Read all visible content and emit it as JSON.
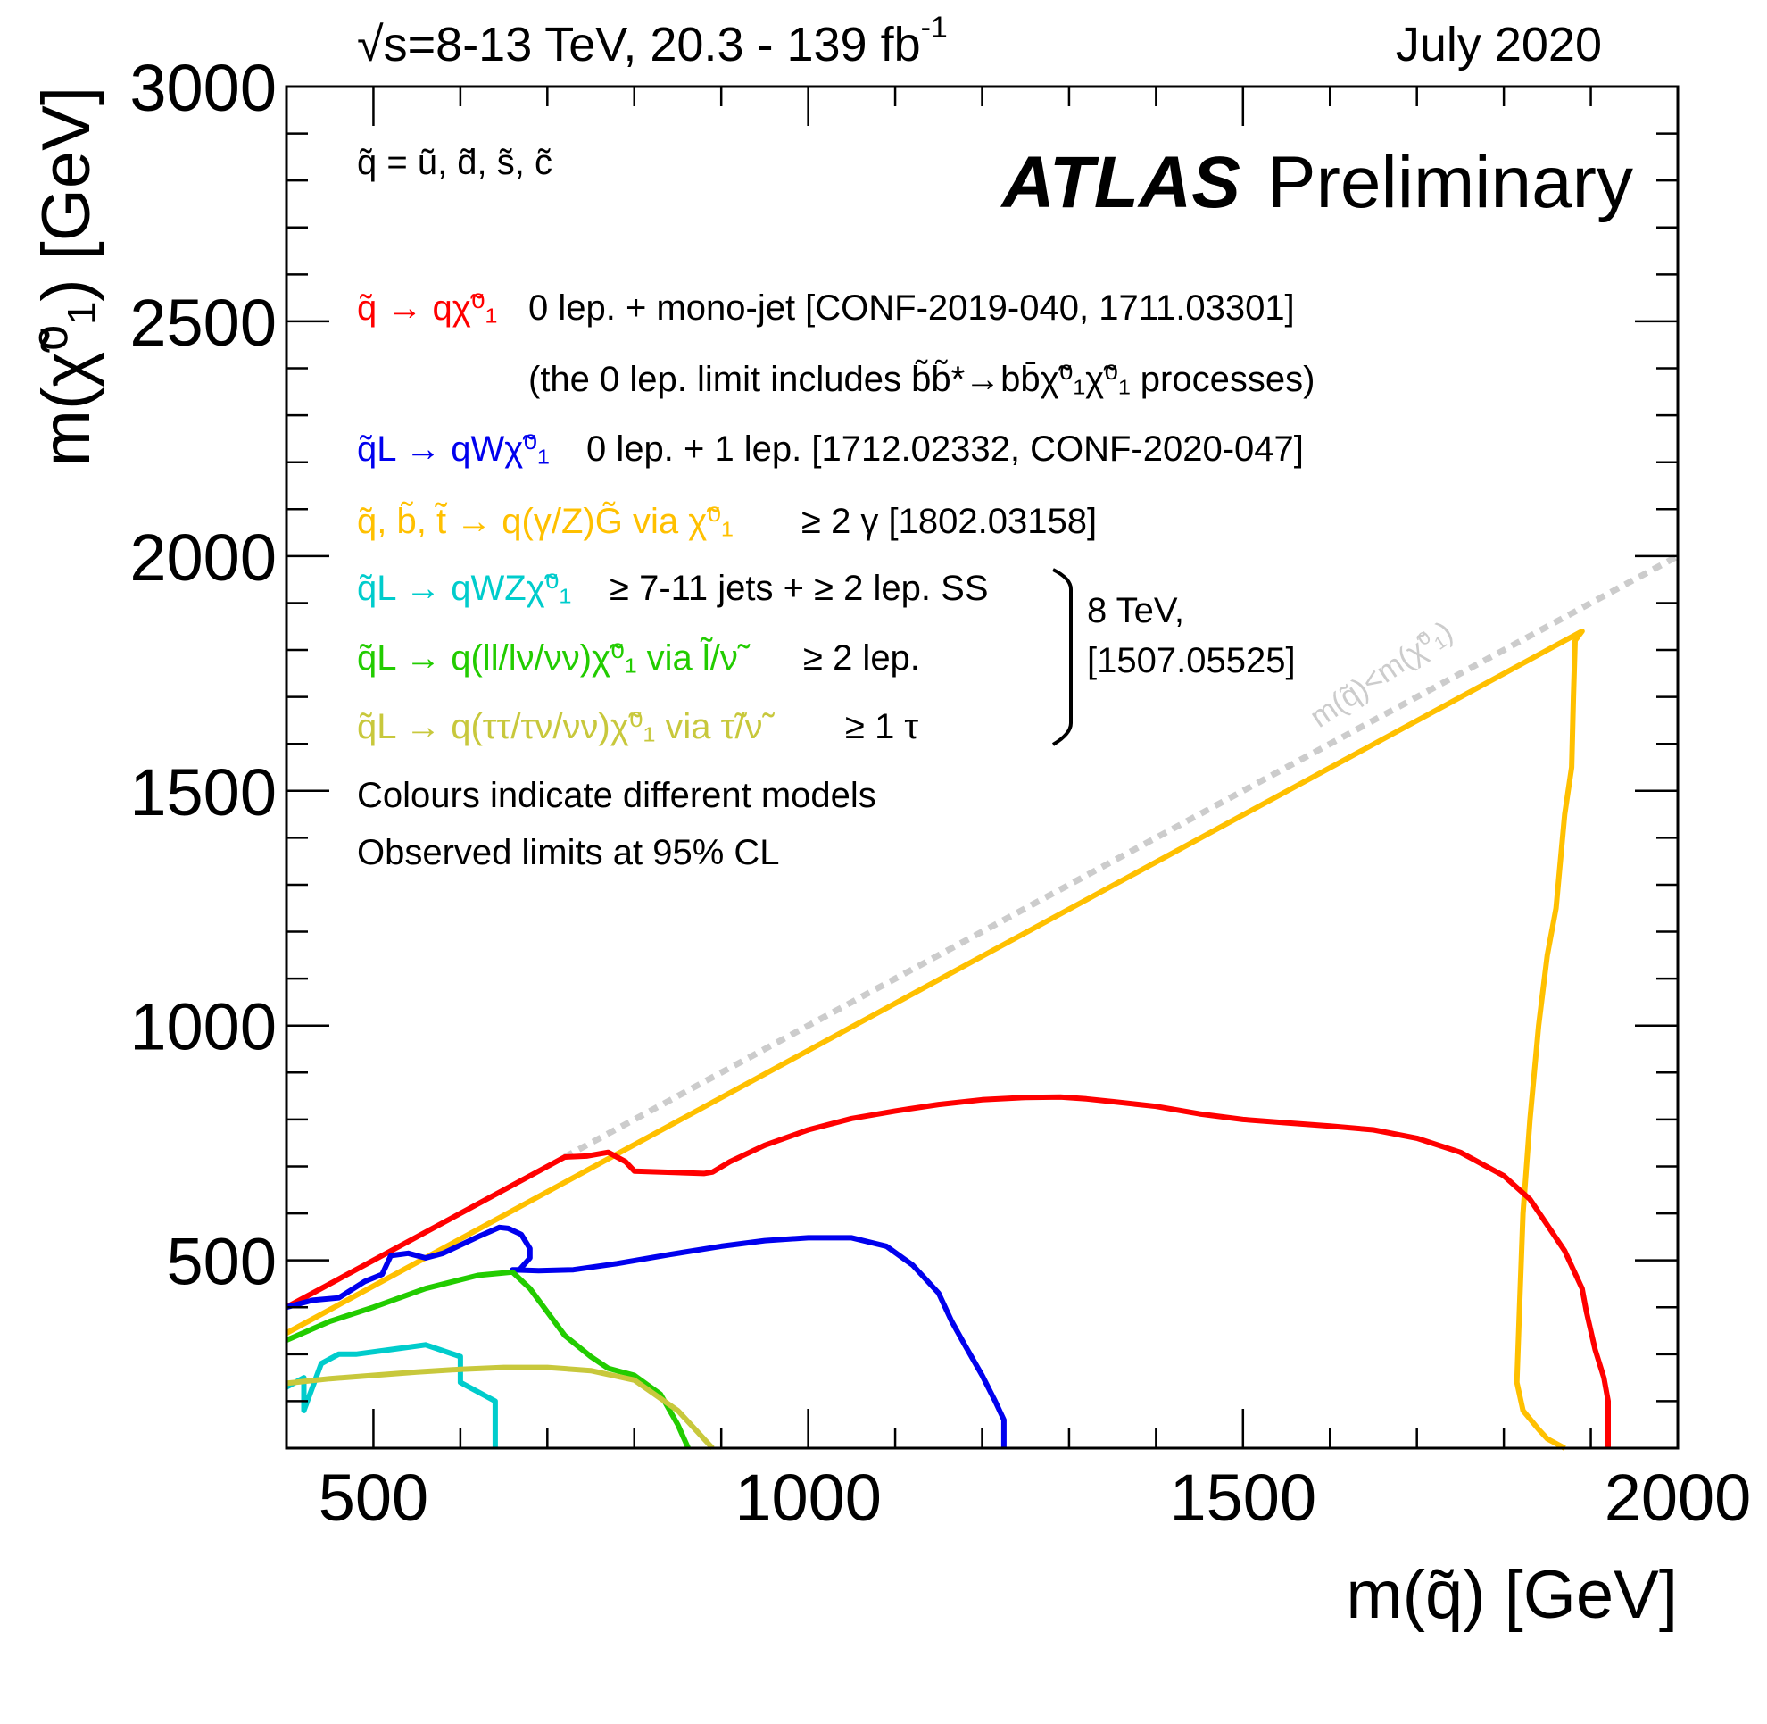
{
  "chart_data": {
    "type": "line",
    "header_left": "√s=8-13 TeV, 20.3 - 139 fb",
    "header_left_sup": "-1",
    "header_right": "July 2020",
    "brand_bold": "ATLAS",
    "brand_rest": "Preliminary",
    "xlabel": "m(q̃) [GeV]",
    "ylabel": "m(χ̃⁰₁) [GeV]",
    "xlim": [
      400,
      2000
    ],
    "ylim": [
      100,
      3000
    ],
    "x_ticks": [
      500,
      1000,
      1500,
      2000
    ],
    "y_ticks": [
      500,
      1000,
      1500,
      2000,
      2500,
      3000
    ],
    "x_tick_labels": [
      "500",
      "1000",
      "1500",
      "2000"
    ],
    "y_tick_labels": [
      "500",
      "1000",
      "1500",
      "2000",
      "2500",
      "3000"
    ],
    "texts": {
      "flavours": "q̃ = ũ, d̃, s̃, c̃",
      "red_process": "q̃ → qχ̃⁰₁",
      "red_desc": "0 lep. + mono-jet [CONF-2019-040, 1711.03301]",
      "red_note": "(the 0 lep. limit includes b̃b̃*→bb̄χ̃⁰₁χ̃⁰₁ processes)",
      "blue_process": "q̃L → qWχ̃⁰₁",
      "blue_desc": "0 lep. + 1 lep. [1712.02332, CONF-2020-047]",
      "orange_process": "q̃, b̃, t̃ → q(γ/Z)G̃ via χ̃⁰₁",
      "orange_desc": "≥ 2 γ [1802.03158]",
      "cyan_process": "q̃L → qWZχ̃⁰₁",
      "cyan_desc": "≥ 7-11 jets + ≥ 2 lep. SS",
      "green_process": "q̃L → q(ll/lν/νν)χ̃⁰₁ via l̃/ν̃",
      "green_desc": "≥ 2 lep.",
      "olive_process": "q̃L → q(ττ/τν/νν)χ̃⁰₁ via τ̃/ν̃",
      "olive_desc": "≥ 1 τ",
      "bracket_line1": "8 TeV,",
      "bracket_line2": "[1507.05525]",
      "colours_note": "Colours indicate different models",
      "cl_note": "Observed limits at 95% CL",
      "diagonal_label": "m(q̃)<m(χ̃⁰₁)"
    },
    "colors": {
      "red": "#ff0000",
      "blue": "#0000ee",
      "orange": "#ffc000",
      "cyan": "#00cccc",
      "green": "#22cc00",
      "olive": "#c8c83c",
      "diagonal": "#cccccc"
    },
    "series": [
      {
        "name": "diagonal",
        "color": "#cccccc",
        "dashed": true,
        "x": [
          720,
          2000
        ],
        "y": [
          720,
          2000
        ]
      },
      {
        "name": "orange",
        "color": "#ffc000",
        "x": [
          400,
          1890,
          1882,
          1880,
          1878,
          1870,
          1860,
          1850,
          1840,
          1830,
          1822,
          1818,
          1815,
          1822,
          1840,
          1850,
          1870
        ],
        "y": [
          345,
          1840,
          1820,
          1700,
          1550,
          1450,
          1250,
          1150,
          1000,
          800,
          600,
          400,
          240,
          180,
          140,
          120,
          100
        ]
      },
      {
        "name": "red",
        "color": "#ff0000",
        "x": [
          400,
          720,
          745,
          770,
          790,
          800,
          880,
          890,
          910,
          950,
          1000,
          1050,
          1100,
          1150,
          1200,
          1250,
          1290,
          1320,
          1350,
          1400,
          1450,
          1500,
          1550,
          1600,
          1650,
          1700,
          1750,
          1800,
          1830,
          1870,
          1890,
          1895,
          1905,
          1915,
          1920,
          1920
        ],
        "y": [
          400,
          720,
          722,
          730,
          710,
          690,
          685,
          688,
          710,
          745,
          778,
          802,
          818,
          832,
          842,
          847,
          848,
          844,
          838,
          828,
          812,
          800,
          793,
          786,
          778,
          760,
          730,
          680,
          630,
          520,
          440,
          390,
          310,
          250,
          200,
          100
        ]
      },
      {
        "name": "blue",
        "color": "#0000ee",
        "x": [
          400,
          430,
          460,
          490,
          510,
          520,
          540,
          560,
          580,
          620,
          645,
          655,
          670,
          680,
          680,
          668,
          660,
          690,
          730,
          780,
          840,
          900,
          950,
          1000,
          1050,
          1090,
          1120,
          1150,
          1165,
          1180,
          1200,
          1215,
          1225,
          1225
        ],
        "y": [
          400,
          415,
          420,
          455,
          470,
          510,
          515,
          505,
          515,
          550,
          570,
          568,
          555,
          525,
          505,
          480,
          480,
          478,
          480,
          493,
          512,
          530,
          542,
          548,
          548,
          530,
          490,
          430,
          370,
          320,
          255,
          200,
          160,
          100
        ]
      },
      {
        "name": "green",
        "color": "#22cc00",
        "x": [
          400,
          450,
          500,
          560,
          620,
          660,
          680,
          700,
          720,
          750,
          770,
          800,
          830,
          850,
          862
        ],
        "y": [
          330,
          370,
          400,
          440,
          468,
          475,
          440,
          390,
          340,
          295,
          270,
          255,
          215,
          150,
          100
        ]
      },
      {
        "name": "cyan",
        "color": "#00cccc",
        "x": [
          400,
          420,
          420,
          440,
          460,
          480,
          520,
          560,
          600,
          600,
          640,
          640
        ],
        "y": [
          230,
          250,
          180,
          280,
          300,
          300,
          310,
          320,
          295,
          240,
          200,
          100
        ]
      },
      {
        "name": "olive",
        "color": "#c8c83c",
        "x": [
          400,
          450,
          500,
          550,
          600,
          650,
          700,
          750,
          800,
          850,
          890
        ],
        "y": [
          238,
          248,
          255,
          262,
          268,
          272,
          272,
          265,
          245,
          180,
          100
        ]
      }
    ]
  }
}
